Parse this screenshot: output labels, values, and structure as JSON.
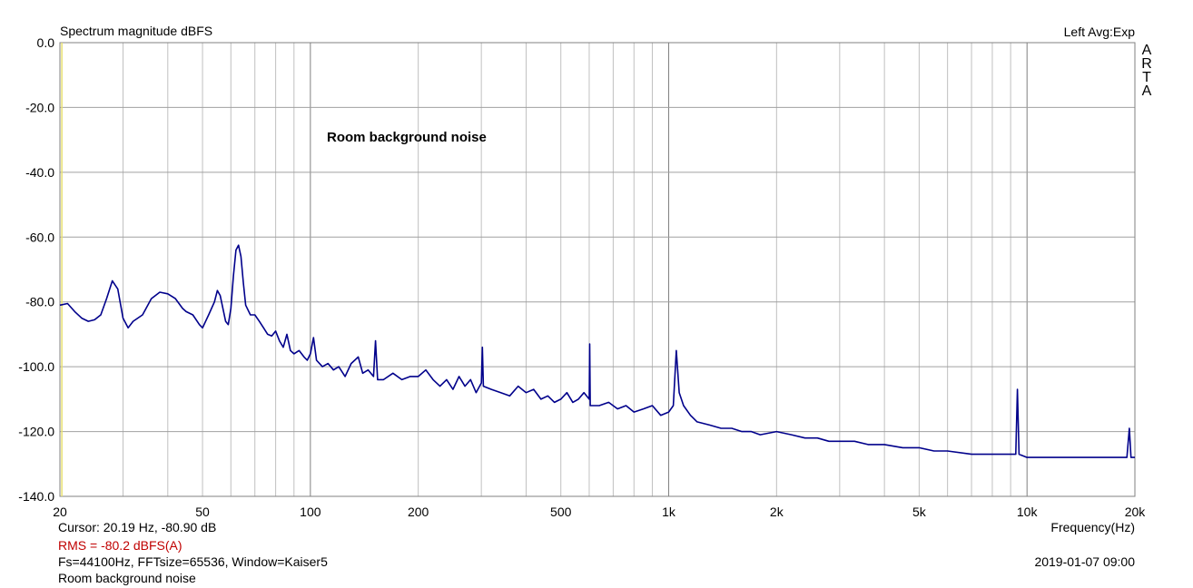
{
  "header": {
    "title": "Spectrum magnitude dBFS",
    "channel_info": "Left  Avg:Exp",
    "brand": "ARTA"
  },
  "footer": {
    "cursor": "Cursor: 20.19 Hz, -80.90 dB",
    "rms": "RMS =  -80.2 dBFS(A)",
    "fft_info": "Fs=44100Hz, FFTsize=65536, Window=Kaiser5",
    "date": "2019-01-07  09:00",
    "note": "Room background noise"
  },
  "colors": {
    "trace": "#00008b",
    "rms_text": "#c00000",
    "grid": "#a0a0a0",
    "cursor_line": "#e8e070"
  },
  "chart_data": {
    "type": "line",
    "title": "Spectrum magnitude dBFS",
    "xlabel": "Frequency(Hz)",
    "ylabel": "",
    "x_scale": "log",
    "xlim": [
      20,
      20000
    ],
    "ylim": [
      -140,
      0
    ],
    "grid": true,
    "cursor_x": 20.19,
    "annotation": "Room background noise",
    "x_ticks": [
      {
        "value": 20,
        "label": "20"
      },
      {
        "value": 50,
        "label": "50"
      },
      {
        "value": 100,
        "label": "100"
      },
      {
        "value": 200,
        "label": "200"
      },
      {
        "value": 500,
        "label": "500"
      },
      {
        "value": 1000,
        "label": "1k"
      },
      {
        "value": 2000,
        "label": "2k"
      },
      {
        "value": 5000,
        "label": "5k"
      },
      {
        "value": 10000,
        "label": "10k"
      },
      {
        "value": 20000,
        "label": "20k"
      }
    ],
    "y_ticks": [
      {
        "value": 0,
        "label": "0.0"
      },
      {
        "value": -20,
        "label": "-20.0"
      },
      {
        "value": -40,
        "label": "-40.0"
      },
      {
        "value": -60,
        "label": "-60.0"
      },
      {
        "value": -80,
        "label": "-80.0"
      },
      {
        "value": -100,
        "label": "-100.0"
      },
      {
        "value": -120,
        "label": "-120.0"
      },
      {
        "value": -140,
        "label": "-140.0"
      }
    ],
    "series": [
      {
        "color": "#00008b",
        "points": [
          [
            20,
            -81
          ],
          [
            21,
            -80.5
          ],
          [
            22,
            -83
          ],
          [
            23,
            -85
          ],
          [
            24,
            -86
          ],
          [
            25,
            -85.5
          ],
          [
            26,
            -84
          ],
          [
            27,
            -79
          ],
          [
            28,
            -73.5
          ],
          [
            29,
            -76
          ],
          [
            30,
            -85
          ],
          [
            31,
            -88
          ],
          [
            32,
            -86
          ],
          [
            34,
            -84
          ],
          [
            36,
            -79
          ],
          [
            38,
            -77
          ],
          [
            40,
            -77.5
          ],
          [
            42,
            -79
          ],
          [
            44,
            -82
          ],
          [
            45,
            -83
          ],
          [
            47,
            -84
          ],
          [
            49,
            -87
          ],
          [
            50,
            -88
          ],
          [
            52,
            -84
          ],
          [
            54,
            -80
          ],
          [
            55,
            -76.5
          ],
          [
            56,
            -78
          ],
          [
            58,
            -86
          ],
          [
            59,
            -87
          ],
          [
            60,
            -82
          ],
          [
            61,
            -72
          ],
          [
            62,
            -64
          ],
          [
            63,
            -62.5
          ],
          [
            64,
            -66
          ],
          [
            65,
            -74
          ],
          [
            66,
            -81
          ],
          [
            68,
            -84
          ],
          [
            70,
            -84
          ],
          [
            72,
            -86
          ],
          [
            74,
            -88
          ],
          [
            76,
            -90
          ],
          [
            78,
            -90.5
          ],
          [
            80,
            -89
          ],
          [
            82,
            -92
          ],
          [
            84,
            -94
          ],
          [
            86,
            -90
          ],
          [
            88,
            -95
          ],
          [
            90,
            -96
          ],
          [
            93,
            -95
          ],
          [
            96,
            -97
          ],
          [
            98,
            -98
          ],
          [
            100,
            -96
          ],
          [
            102,
            -91
          ],
          [
            104,
            -98
          ],
          [
            108,
            -100
          ],
          [
            112,
            -99
          ],
          [
            116,
            -101
          ],
          [
            120,
            -100
          ],
          [
            125,
            -103
          ],
          [
            130,
            -99
          ],
          [
            136,
            -97
          ],
          [
            140,
            -102
          ],
          [
            145,
            -101
          ],
          [
            150,
            -103
          ],
          [
            152,
            -92
          ],
          [
            154,
            -104
          ],
          [
            160,
            -104
          ],
          [
            170,
            -102
          ],
          [
            180,
            -104
          ],
          [
            190,
            -103
          ],
          [
            200,
            -103
          ],
          [
            210,
            -101
          ],
          [
            220,
            -104
          ],
          [
            230,
            -106
          ],
          [
            240,
            -104
          ],
          [
            250,
            -107
          ],
          [
            260,
            -103
          ],
          [
            270,
            -106
          ],
          [
            280,
            -104
          ],
          [
            290,
            -108
          ],
          [
            300,
            -105
          ],
          [
            302,
            -94
          ],
          [
            304,
            -106
          ],
          [
            320,
            -107
          ],
          [
            340,
            -108
          ],
          [
            360,
            -109
          ],
          [
            380,
            -106
          ],
          [
            400,
            -108
          ],
          [
            420,
            -107
          ],
          [
            440,
            -110
          ],
          [
            460,
            -109
          ],
          [
            480,
            -111
          ],
          [
            500,
            -110
          ],
          [
            520,
            -108
          ],
          [
            540,
            -111
          ],
          [
            560,
            -110
          ],
          [
            580,
            -108
          ],
          [
            600,
            -110
          ],
          [
            602,
            -93
          ],
          [
            604,
            -112
          ],
          [
            640,
            -112
          ],
          [
            680,
            -111
          ],
          [
            720,
            -113
          ],
          [
            760,
            -112
          ],
          [
            800,
            -114
          ],
          [
            850,
            -113
          ],
          [
            900,
            -112
          ],
          [
            950,
            -115
          ],
          [
            1000,
            -114
          ],
          [
            1030,
            -112
          ],
          [
            1050,
            -95
          ],
          [
            1070,
            -108
          ],
          [
            1100,
            -112
          ],
          [
            1150,
            -115
          ],
          [
            1200,
            -117
          ],
          [
            1300,
            -118
          ],
          [
            1400,
            -119
          ],
          [
            1500,
            -119
          ],
          [
            1600,
            -120
          ],
          [
            1700,
            -120
          ],
          [
            1800,
            -121
          ],
          [
            2000,
            -120
          ],
          [
            2200,
            -121
          ],
          [
            2400,
            -122
          ],
          [
            2600,
            -122
          ],
          [
            2800,
            -123
          ],
          [
            3000,
            -123
          ],
          [
            3300,
            -123
          ],
          [
            3600,
            -124
          ],
          [
            4000,
            -124
          ],
          [
            4500,
            -125
          ],
          [
            5000,
            -125
          ],
          [
            5500,
            -126
          ],
          [
            6000,
            -126
          ],
          [
            7000,
            -127
          ],
          [
            8000,
            -127
          ],
          [
            9000,
            -127
          ],
          [
            9300,
            -127
          ],
          [
            9400,
            -107
          ],
          [
            9500,
            -127
          ],
          [
            10000,
            -128
          ],
          [
            12000,
            -128
          ],
          [
            14000,
            -128
          ],
          [
            16000,
            -128
          ],
          [
            18000,
            -128
          ],
          [
            19000,
            -128
          ],
          [
            19300,
            -119
          ],
          [
            19500,
            -128
          ],
          [
            20000,
            -128
          ]
        ]
      }
    ]
  }
}
